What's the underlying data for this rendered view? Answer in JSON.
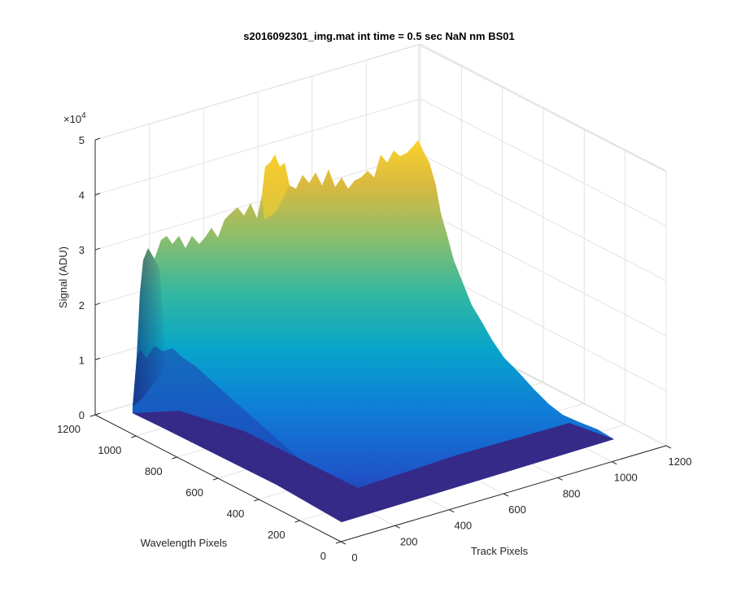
{
  "chart_data": {
    "type": "surface",
    "title": "s2016092301_img.mat int time = 0.5 sec  NaN nm BS01",
    "xlabel": "Track Pixels",
    "ylabel": "Wavelength Pixels",
    "zlabel": "Signal (ADU)",
    "xlim": [
      0,
      1200
    ],
    "ylim": [
      0,
      1200
    ],
    "zlim": [
      0,
      50000
    ],
    "x_ticks": [
      "0",
      "200",
      "400",
      "600",
      "800",
      "1000",
      "1200"
    ],
    "y_ticks": [
      "0",
      "200",
      "400",
      "600",
      "800",
      "1000",
      "1200"
    ],
    "z_ticks": [
      "0",
      "1",
      "2",
      "3",
      "4",
      "5"
    ],
    "z_exponent_base": "×10",
    "z_exponent_power": "4",
    "grid": true,
    "colormap": "parula",
    "peak_ridge": {
      "track_pixels": [
        40,
        100,
        150,
        200,
        260,
        300,
        350,
        400,
        450,
        500,
        550,
        600,
        650,
        700,
        760,
        800
      ],
      "signal": [
        28000,
        29500,
        30500,
        32000,
        33500,
        36000,
        45000,
        38000,
        40000,
        40500,
        41000,
        42500,
        43000,
        45000,
        36000,
        15000
      ]
    }
  }
}
